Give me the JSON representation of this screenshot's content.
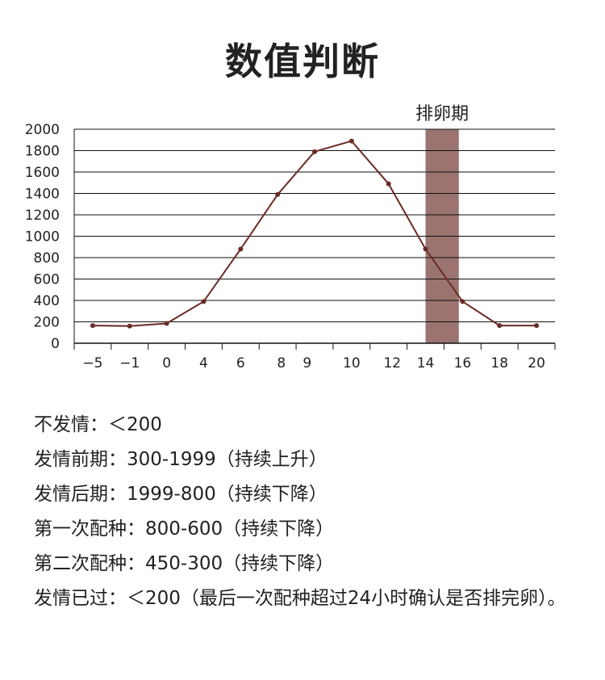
{
  "title": "数值判断",
  "chart_data": {
    "type": "line",
    "categories": [
      "−5",
      "−1",
      "0",
      "4",
      "6",
      "8",
      "9",
      "10",
      "12",
      "14",
      "16",
      "18",
      "20"
    ],
    "x_ticks": [
      {
        "label": "−5",
        "pos": 0.5
      },
      {
        "label": "−1",
        "pos": 1.5
      },
      {
        "label": "0",
        "pos": 2.5
      },
      {
        "label": "4",
        "pos": 3.5
      },
      {
        "label": "6",
        "pos": 4.5
      },
      {
        "label": "8",
        "pos": 5.6
      },
      {
        "label": "9",
        "pos": 6.3
      },
      {
        "label": "10",
        "pos": 7.5
      },
      {
        "label": "12",
        "pos": 8.6
      },
      {
        "label": "14",
        "pos": 9.5
      },
      {
        "label": "16",
        "pos": 10.5
      },
      {
        "label": "18",
        "pos": 11.5
      },
      {
        "label": "20",
        "pos": 12.5
      }
    ],
    "series": [
      {
        "color": "#6b2a24",
        "points": [
          {
            "pos": 0.5,
            "value": 165
          },
          {
            "pos": 1.5,
            "value": 160
          },
          {
            "pos": 2.5,
            "value": 185
          },
          {
            "pos": 3.5,
            "value": 390
          },
          {
            "pos": 4.5,
            "value": 880
          },
          {
            "pos": 5.5,
            "value": 1390
          },
          {
            "pos": 6.5,
            "value": 1790
          },
          {
            "pos": 7.5,
            "value": 1890
          },
          {
            "pos": 8.5,
            "value": 1490
          },
          {
            "pos": 9.5,
            "value": 880
          },
          {
            "pos": 10.5,
            "value": 390
          },
          {
            "pos": 11.5,
            "value": 165
          },
          {
            "pos": 12.5,
            "value": 165
          }
        ]
      }
    ],
    "ylim": [
      0,
      2000
    ],
    "y_ticks": [
      0,
      200,
      400,
      600,
      800,
      1000,
      1200,
      1400,
      1600,
      1800,
      2000
    ],
    "grid": true,
    "band": {
      "label": "排卵期",
      "from": 9.5,
      "to": 10.4,
      "color": "#9b7470"
    }
  },
  "notes": [
    "不发情：＜200",
    "发情前期：300-1999（持续上升）",
    "发情后期：1999-800（持续下降）",
    "第一次配种：800-600（持续下降）",
    "第二次配种：450-300（持续下降）",
    "发情已过：＜200（最后一次配种超过24小时确认是否排完卵）。"
  ]
}
